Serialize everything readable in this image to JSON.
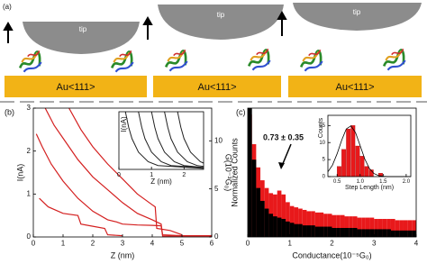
{
  "diagram": {
    "label": "(a)",
    "tips": [
      "tip",
      "tip",
      "tip"
    ],
    "substrates": [
      "Au<111>",
      "Au<111>",
      "Au<111>"
    ]
  },
  "chart_data": [
    {
      "type": "line",
      "panel_label": "(b)",
      "xlabel": "Z (nm)",
      "ylabel": "I(nA)",
      "y2label": "G(10⁻³G₀)",
      "xlim": [
        0,
        6
      ],
      "xticks": [
        0,
        1,
        2,
        3,
        4,
        5,
        6
      ],
      "ylim": [
        0,
        3
      ],
      "yticks": [
        0,
        1,
        2,
        3
      ],
      "y2lim": [
        0,
        13.4
      ],
      "y2ticks": [
        0,
        5,
        10
      ],
      "series": [
        {
          "color": "#d42020",
          "x": [
            0.1,
            0.3,
            0.6,
            1.0,
            1.5,
            2.0,
            2.5,
            2.8,
            3.0,
            3.5,
            4.0,
            4.3,
            4.35,
            5.0,
            6.0
          ],
          "values": [
            2.4,
            2.1,
            1.7,
            1.3,
            0.9,
            0.6,
            0.4,
            0.35,
            0.3,
            0.28,
            0.27,
            0.26,
            0.05,
            0.03,
            0.03
          ]
        },
        {
          "color": "#d42020",
          "x": [
            0.4,
            0.7,
            1.0,
            1.5,
            2.0,
            2.5,
            3.0,
            3.5,
            4.0,
            4.3,
            4.35,
            6.0
          ],
          "values": [
            3.0,
            2.6,
            2.3,
            1.8,
            1.4,
            1.1,
            0.8,
            0.55,
            0.4,
            0.3,
            0.02,
            0.02
          ]
        },
        {
          "color": "#d42020",
          "x": [
            1.2,
            1.6,
            2.0,
            2.5,
            3.0,
            3.5,
            4.0,
            4.1,
            4.15,
            4.6,
            5.0
          ],
          "values": [
            3.0,
            2.5,
            2.1,
            1.7,
            1.35,
            1.0,
            0.75,
            0.7,
            0.2,
            0.15,
            0.05
          ]
        },
        {
          "color": "#d42020",
          "x": [
            0.2,
            0.5,
            1.0,
            1.5,
            1.6,
            2.0,
            2.4,
            2.5,
            3.0
          ],
          "values": [
            0.9,
            0.7,
            0.55,
            0.5,
            0.3,
            0.25,
            0.2,
            0.05,
            0.03
          ]
        }
      ]
    },
    {
      "type": "line",
      "xlabel": "Z (nm)",
      "ylabel": "I(nA)",
      "xlim": [
        0,
        2.6
      ],
      "xticks": [
        0,
        1,
        2
      ],
      "ylim": [
        0,
        3
      ],
      "series": [
        {
          "color": "#222222",
          "x": [
            0.2,
            0.3,
            0.4,
            0.6,
            0.9,
            1.2,
            2.6
          ],
          "values": [
            3,
            2.2,
            1.6,
            0.9,
            0.4,
            0.2,
            0.05
          ]
        },
        {
          "color": "#222222",
          "x": [
            0.6,
            0.7,
            0.8,
            1.0,
            1.3,
            1.6,
            2.6
          ],
          "values": [
            3,
            2.2,
            1.6,
            0.9,
            0.4,
            0.2,
            0.08
          ]
        },
        {
          "color": "#222222",
          "x": [
            1.0,
            1.1,
            1.2,
            1.4,
            1.7,
            2.0,
            2.6
          ],
          "values": [
            3,
            2.2,
            1.6,
            0.9,
            0.4,
            0.2,
            0.1
          ]
        },
        {
          "color": "#222222",
          "x": [
            1.4,
            1.5,
            1.6,
            1.8,
            2.1,
            2.4,
            2.6
          ],
          "values": [
            3,
            2.2,
            1.6,
            0.9,
            0.4,
            0.2,
            0.15
          ]
        },
        {
          "color": "#222222",
          "x": [
            1.8,
            1.9,
            2.0,
            2.2,
            2.5,
            2.6
          ],
          "values": [
            3,
            2.2,
            1.6,
            0.9,
            0.4,
            0.33
          ]
        }
      ]
    },
    {
      "type": "histogram",
      "panel_label": "(c)",
      "xlabel": "Conductance(10⁻⁵G₀)",
      "ylabel": "Normalized Counts",
      "annotation": "0.73 ± 0.35",
      "xlim": [
        0,
        4
      ],
      "xticks": [
        0,
        1,
        2,
        3,
        4
      ],
      "ylim": [
        0,
        100
      ],
      "bins": [
        0,
        0.1,
        0.2,
        0.3,
        0.4,
        0.5,
        0.6,
        0.7,
        0.8,
        0.9,
        1.0,
        1.1,
        1.2,
        1.3,
        1.4,
        1.5,
        1.6,
        1.7,
        1.8,
        1.9,
        2.0,
        2.1,
        2.2,
        2.3,
        2.4,
        2.5,
        2.6,
        2.7,
        2.8,
        2.9,
        3.0,
        3.1,
        3.2,
        3.3,
        3.4,
        3.5,
        3.6,
        3.7,
        3.8,
        3.9,
        4.0
      ],
      "series": [
        {
          "color": "#e8191b",
          "values": [
            95,
            72,
            54,
            44,
            38,
            34,
            33,
            36,
            33,
            27,
            24,
            23,
            22,
            21,
            20,
            20,
            19,
            19,
            18,
            18,
            17,
            17,
            17,
            16,
            16,
            16,
            15,
            15,
            15,
            15,
            14,
            14,
            14,
            14,
            14,
            13,
            13,
            13,
            13,
            13
          ]
        },
        {
          "color": "#000000",
          "values": [
            100,
            60,
            38,
            28,
            22,
            18,
            16,
            15,
            14,
            12,
            11,
            10,
            10,
            9,
            9,
            9,
            8,
            8,
            8,
            8,
            7,
            7,
            7,
            7,
            7,
            7,
            6,
            6,
            6,
            6,
            6,
            6,
            6,
            6,
            5,
            5,
            5,
            5,
            5,
            5
          ]
        }
      ]
    },
    {
      "type": "histogram",
      "xlabel": "Step Length (nm)",
      "ylabel": "Counts",
      "xlim": [
        0.3,
        2.1
      ],
      "xticks": [
        0.5,
        {
          "value": 1,
          "label": "1.0"
        },
        1.5,
        {
          "value": 2,
          "label": "2.0"
        }
      ],
      "ylim": [
        0,
        18
      ],
      "yticks": [
        0,
        5,
        10,
        15
      ],
      "bins": [
        0.5,
        0.6,
        0.7,
        0.8,
        0.9,
        1.0,
        1.1,
        1.2,
        1.3,
        1.4,
        1.5
      ],
      "series": [
        {
          "color": "#e8191b",
          "values": [
            3,
            8,
            14,
            15,
            9,
            6,
            3,
            2,
            0,
            1
          ]
        }
      ],
      "fit": {
        "x": [
          0.3,
          0.4,
          0.5,
          0.6,
          0.7,
          0.8,
          0.9,
          1.0,
          1.1,
          1.2,
          1.3,
          1.4,
          1.5,
          1.6,
          1.7,
          1.8,
          1.9,
          2.0,
          2.1
        ],
        "values": [
          1.4,
          3.4,
          6.7,
          10.7,
          14.0,
          14.9,
          12.9,
          9.1,
          5.2,
          2.4,
          0.9,
          0.3,
          0.1,
          0,
          0,
          0,
          0,
          0,
          0
        ]
      }
    }
  ]
}
